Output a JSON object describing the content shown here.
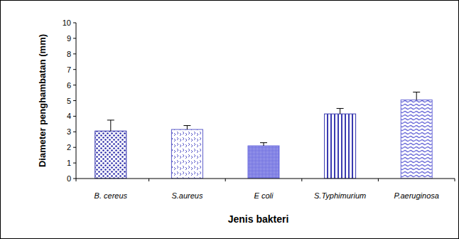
{
  "chart_data": {
    "type": "bar",
    "x_label": "Jenis bakteri",
    "y_label": "Diameter penghambatan (mm)",
    "categories": [
      "B. cereus",
      "S.aureus",
      "E coli",
      "S.Typhimurium",
      "P.aeruginosa"
    ],
    "values": [
      3.05,
      3.15,
      2.1,
      4.15,
      5.05
    ],
    "errors": [
      0.7,
      0.25,
      0.2,
      0.35,
      0.5
    ],
    "colors": [
      "#2a2aa8",
      "#5a5ac8",
      "#6f6fe0",
      "#3a3ab0",
      "#6a6ad8"
    ],
    "ylim": [
      0,
      10
    ],
    "yticks": [
      0,
      1,
      2,
      3,
      4,
      5,
      6,
      7,
      8,
      9,
      10
    ],
    "grid": false
  }
}
